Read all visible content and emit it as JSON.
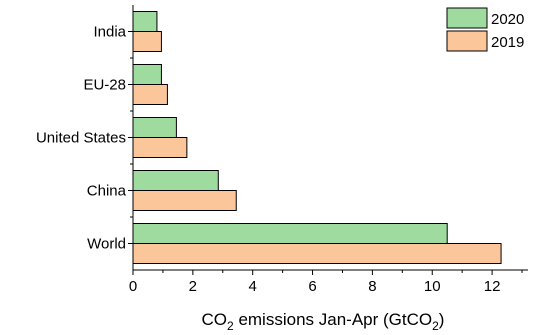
{
  "chart_data": {
    "type": "bar",
    "orientation": "horizontal",
    "categories": [
      "World",
      "China",
      "United States",
      "EU-28",
      "India"
    ],
    "series": [
      {
        "name": "2020",
        "values": [
          10.5,
          2.85,
          1.45,
          0.95,
          0.8
        ],
        "color": "#9fdb9f"
      },
      {
        "name": "2019",
        "values": [
          12.3,
          3.45,
          1.8,
          1.15,
          0.95
        ],
        "color": "#fcc69b"
      }
    ],
    "xlabel_parts": {
      "pre": "CO",
      "sub1": "2",
      "mid": " emissions Jan-Apr (GtCO",
      "sub2": "2",
      "post": ")"
    },
    "xlim": [
      0,
      13.2
    ],
    "xticks": [
      "0",
      "2",
      "4",
      "6",
      "8",
      "10",
      "12"
    ],
    "legend_position": "top-right",
    "grid": false
  }
}
